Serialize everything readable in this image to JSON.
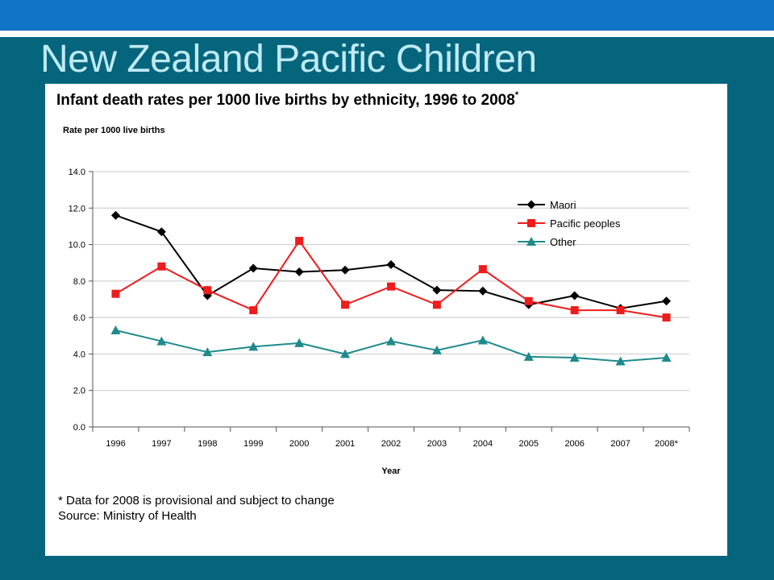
{
  "slide": {
    "title": "New Zealand Pacific Children"
  },
  "colors": {
    "background": "#05657d",
    "topbar": "#1274c7",
    "title_text": "#bfeaf4"
  },
  "chart_data": {
    "type": "line",
    "title": "Infant death rates per 1000 live births by ethnicity, 1996 to 2008",
    "title_marker": "*",
    "ylabel": "Rate per 1000 live births",
    "xlabel": "Year",
    "categories": [
      "1996",
      "1997",
      "1998",
      "1999",
      "2000",
      "2001",
      "2002",
      "2003",
      "2004",
      "2005",
      "2006",
      "2007",
      "2008*"
    ],
    "ylim": [
      0,
      14
    ],
    "yticks": [
      "0.0",
      "2.0",
      "4.0",
      "6.0",
      "8.0",
      "10.0",
      "12.0",
      "14.0"
    ],
    "grid": true,
    "legend_position": "top-right",
    "series": [
      {
        "name": "Maori",
        "color": "#000000",
        "marker": "diamond",
        "values": [
          11.6,
          10.7,
          7.2,
          8.7,
          8.5,
          8.6,
          8.9,
          7.5,
          7.45,
          6.7,
          7.2,
          6.5,
          6.9
        ]
      },
      {
        "name": "Pacific peoples",
        "color": "#ee1c1c",
        "marker": "square",
        "values": [
          7.3,
          8.8,
          7.5,
          6.4,
          10.2,
          6.7,
          7.7,
          6.7,
          8.65,
          6.9,
          6.4,
          6.4,
          6.0
        ]
      },
      {
        "name": "Other",
        "color": "#1f8a8a",
        "marker": "triangle",
        "values": [
          5.3,
          4.7,
          4.1,
          4.4,
          4.6,
          4.0,
          4.7,
          4.2,
          4.75,
          3.85,
          3.8,
          3.6,
          3.8
        ]
      }
    ],
    "footnote": "* Data for 2008 is provisional and subject to change",
    "source": "Source: Ministry of Health"
  }
}
